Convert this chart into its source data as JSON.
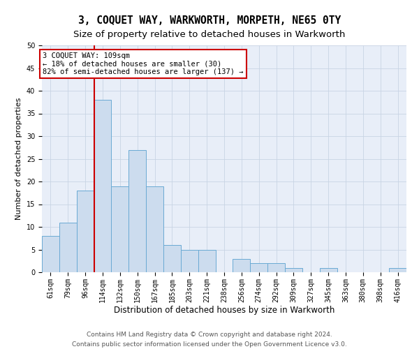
{
  "title": "3, COQUET WAY, WARKWORTH, MORPETH, NE65 0TY",
  "subtitle": "Size of property relative to detached houses in Warkworth",
  "xlabel": "Distribution of detached houses by size in Warkworth",
  "ylabel": "Number of detached properties",
  "bar_labels": [
    "61sqm",
    "79sqm",
    "96sqm",
    "114sqm",
    "132sqm",
    "150sqm",
    "167sqm",
    "185sqm",
    "203sqm",
    "221sqm",
    "238sqm",
    "256sqm",
    "274sqm",
    "292sqm",
    "309sqm",
    "327sqm",
    "345sqm",
    "363sqm",
    "380sqm",
    "398sqm",
    "416sqm"
  ],
  "bar_values": [
    8,
    11,
    18,
    38,
    19,
    27,
    19,
    6,
    5,
    5,
    0,
    3,
    2,
    2,
    1,
    0,
    1,
    0,
    0,
    0,
    1
  ],
  "bar_color": "#ccdcee",
  "bar_edge_color": "#6aaad4",
  "vline_x": 2.5,
  "vline_color": "#cc0000",
  "annotation_text": "3 COQUET WAY: 109sqm\n← 18% of detached houses are smaller (30)\n82% of semi-detached houses are larger (137) →",
  "annotation_box_color": "#ffffff",
  "annotation_box_edge": "#cc0000",
  "ylim": [
    0,
    50
  ],
  "yticks": [
    0,
    5,
    10,
    15,
    20,
    25,
    30,
    35,
    40,
    45,
    50
  ],
  "grid_color": "#c8d4e4",
  "background_color": "#e8eef8",
  "footer_line1": "Contains HM Land Registry data © Crown copyright and database right 2024.",
  "footer_line2": "Contains public sector information licensed under the Open Government Licence v3.0.",
  "title_fontsize": 10.5,
  "subtitle_fontsize": 9.5,
  "xlabel_fontsize": 8.5,
  "ylabel_fontsize": 8,
  "tick_fontsize": 7,
  "annotation_fontsize": 7.5,
  "footer_fontsize": 6.5
}
